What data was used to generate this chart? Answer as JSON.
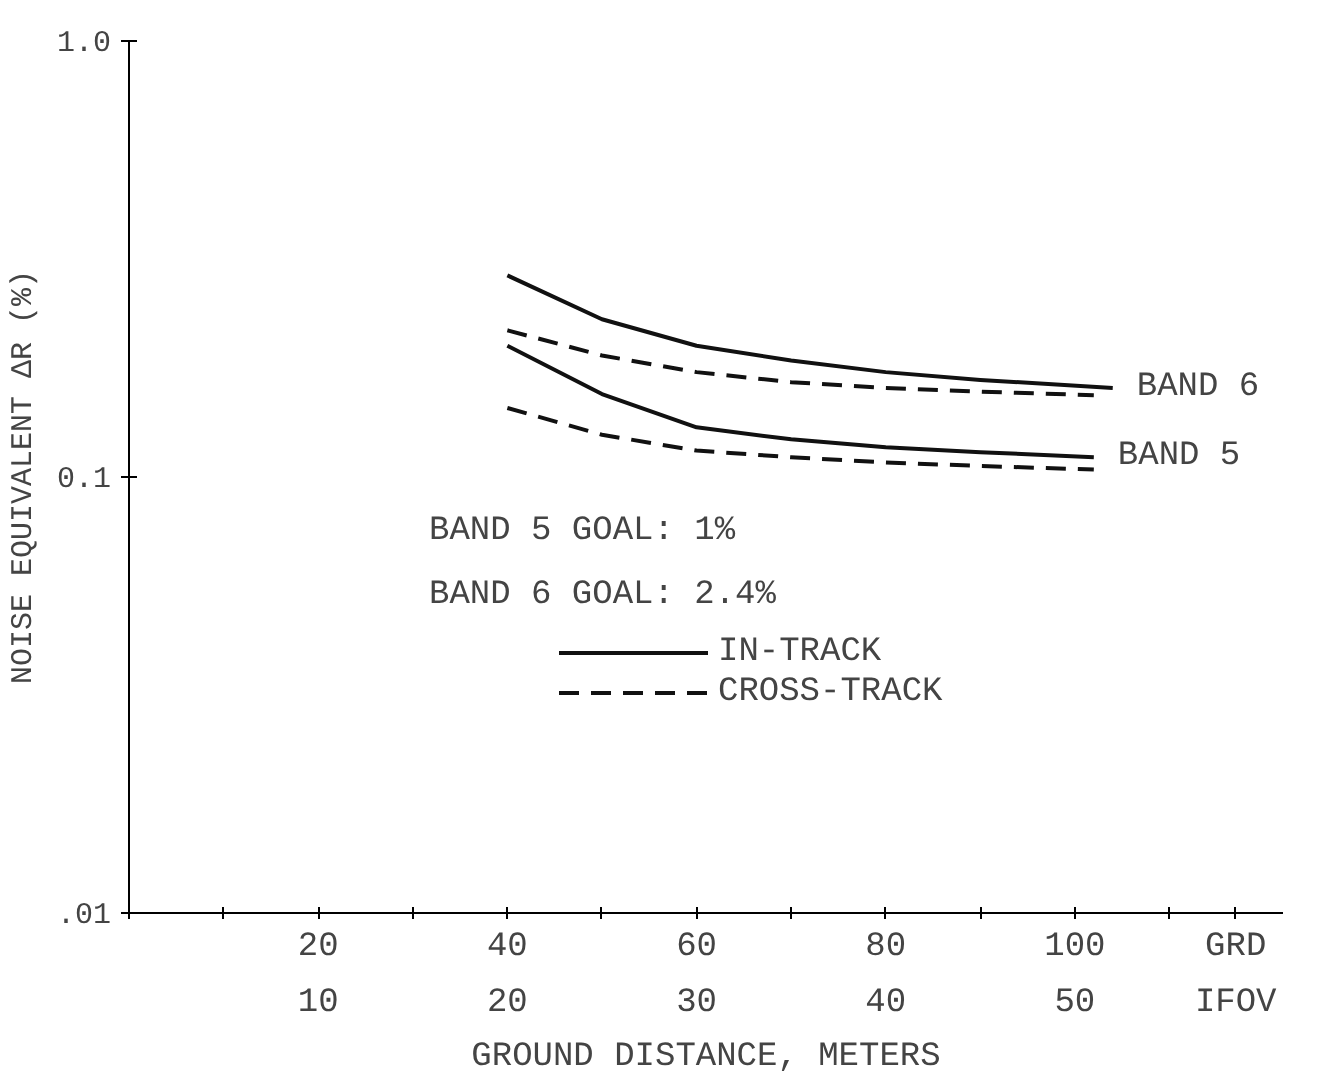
{
  "chart_data": {
    "type": "line",
    "xlabel": "GROUND DISTANCE, METERS",
    "ylabel": "NOISE EQUIVALENT ΔR (%)",
    "log": "y",
    "xlim": [
      0,
      122
    ],
    "xticks": [
      {
        "value": 0,
        "label": null
      },
      {
        "value": 10,
        "label": null
      },
      20,
      {
        "value": 30,
        "label": null
      },
      40,
      {
        "value": 50,
        "label": null
      },
      60,
      {
        "value": 70,
        "label": null
      },
      80,
      {
        "value": 90,
        "label": null
      },
      100,
      {
        "value": 110,
        "label": null
      },
      {
        "value": 117,
        "label": "GRD"
      }
    ],
    "x2lim": [
      0,
      61
    ],
    "x2ticks": [
      10,
      20,
      30,
      40,
      50,
      {
        "value": 58.5,
        "label": "IFOV"
      }
    ],
    "ylim": [
      0.01,
      1.0
    ],
    "yticks": [
      {
        "value": 1.0,
        "label": "1.0"
      },
      {
        "value": 0.1,
        "label": "0.1"
      },
      {
        "value": 0.01,
        "label": ".01"
      }
    ],
    "grid": false,
    "legend": "right",
    "series": [
      {
        "name": "IN-TRACK",
        "color": "#111111",
        "line_style": "solid",
        "x": [
          40,
          50,
          60,
          70,
          80,
          90,
          104
        ],
        "values": [
          0.29,
          0.23,
          0.2,
          0.185,
          0.174,
          0.167,
          0.16
        ]
      },
      {
        "name": "CROSS-TRACK",
        "color": "#111111",
        "line_style": "dashed",
        "x": [
          40,
          50,
          60,
          70,
          80,
          90,
          102
        ],
        "values": [
          0.217,
          0.19,
          0.174,
          0.165,
          0.16,
          0.157,
          0.154
        ]
      },
      {
        "color": "#111111",
        "line_style": "solid",
        "x": [
          40,
          50,
          60,
          70,
          80,
          90,
          102
        ],
        "values": [
          0.2,
          0.155,
          0.13,
          0.122,
          0.117,
          0.114,
          0.111
        ]
      },
      {
        "color": "#111111",
        "line_style": "dashed",
        "x": [
          40,
          50,
          60,
          70,
          80,
          90,
          102
        ],
        "values": [
          0.144,
          0.125,
          0.115,
          0.111,
          0.108,
          0.106,
          0.104
        ]
      }
    ],
    "annotations": [
      {
        "text": "BAND 6",
        "x": 104,
        "y": 0.16
      },
      {
        "text": "BAND 5",
        "x": 102,
        "y": 0.111
      },
      "BAND 5 GOAL:  1%",
      "BAND 6 GOAL:  2.4%"
    ]
  }
}
